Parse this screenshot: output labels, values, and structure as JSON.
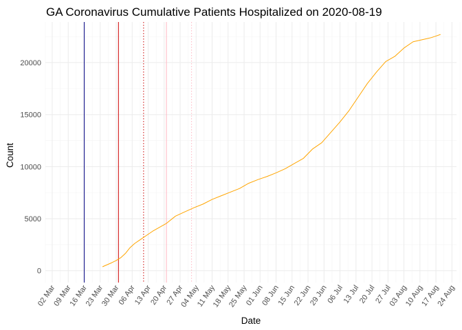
{
  "chart_data": {
    "type": "line",
    "title": "GA Coronavirus Cumulative Patients Hospitalized on 2020-08-19",
    "xlabel": "Date",
    "ylabel": "Count",
    "x_ticks": [
      "02 Mar",
      "09 Mar",
      "16 Mar",
      "23 Mar",
      "30 Mar",
      "06 Apr",
      "13 Apr",
      "20 Apr",
      "27 Apr",
      "04 May",
      "11 May",
      "18 May",
      "25 May",
      "01 Jun",
      "08 Jun",
      "15 Jun",
      "22 Jun",
      "29 Jun",
      "06 Jul",
      "13 Jul",
      "20 Jul",
      "27 Jul",
      "03 Aug",
      "10 Aug",
      "17 Aug",
      "24 Aug"
    ],
    "y_ticks": [
      0,
      5000,
      10000,
      15000,
      20000
    ],
    "x_range_day_offsets": [
      -3,
      177
    ],
    "ylim": [
      -1140,
      23900
    ],
    "grid": true,
    "series": [
      {
        "name": "Cumulative Patients Hospitalized",
        "color": "#FFA500",
        "day_offsets": [
          22,
          24,
          26,
          28,
          30,
          32,
          34,
          36,
          38,
          40,
          42,
          44,
          46,
          48,
          50,
          54,
          58,
          62,
          66,
          70,
          74,
          78,
          82,
          86,
          90,
          94,
          98,
          102,
          106,
          110,
          114,
          118,
          122,
          126,
          130,
          134,
          138,
          142,
          146,
          150,
          154,
          158,
          162,
          164,
          166,
          168,
          170
        ],
        "values": [
          380,
          570,
          760,
          980,
          1250,
          1650,
          2200,
          2600,
          2900,
          3200,
          3500,
          3800,
          4050,
          4300,
          4550,
          5250,
          5650,
          6050,
          6400,
          6850,
          7200,
          7550,
          7900,
          8400,
          8750,
          9050,
          9400,
          9800,
          10300,
          10800,
          11700,
          12300,
          13300,
          14300,
          15400,
          16700,
          18000,
          19100,
          20100,
          20600,
          21400,
          22000,
          22200,
          22300,
          22400,
          22550,
          22700
        ]
      }
    ],
    "reference_lines": [
      {
        "day_offset": 14,
        "color": "#000080",
        "style": "solid"
      },
      {
        "day_offset": 29,
        "color": "#CC0000",
        "style": "solid"
      },
      {
        "day_offset": 40,
        "color": "#CC0000",
        "style": "dotted"
      },
      {
        "day_offset": 50,
        "color": "#FFB6C1",
        "style": "solid"
      },
      {
        "day_offset": 61,
        "color": "#FFB6C1",
        "style": "dotted"
      }
    ]
  }
}
